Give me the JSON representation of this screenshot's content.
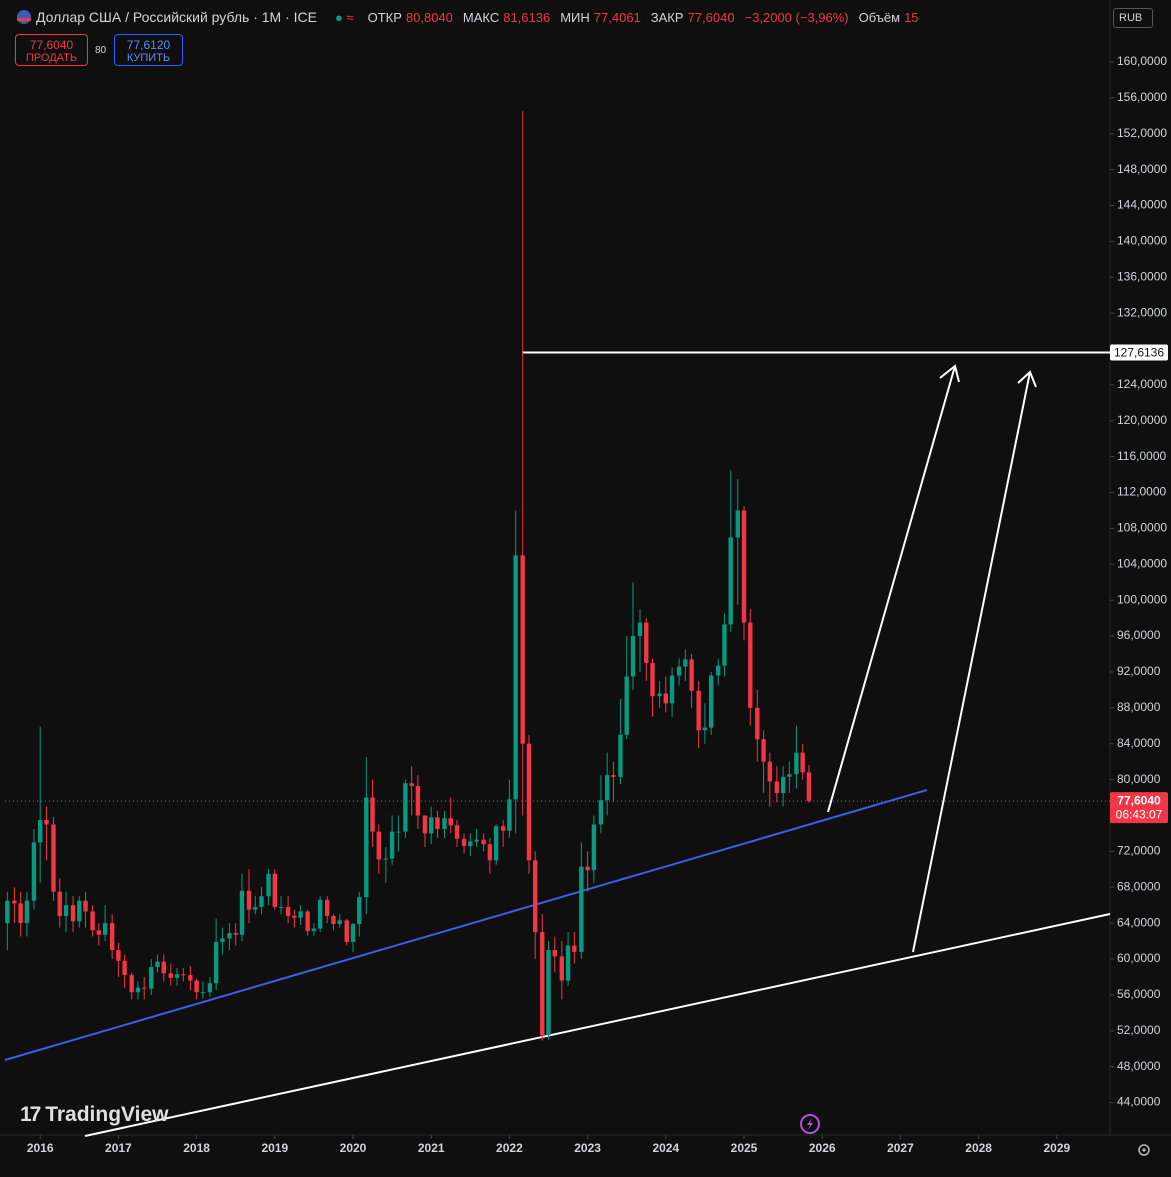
{
  "header": {
    "title": "Доллар США / Российский рубль · 1M · ICE",
    "open_label": "ОТКР",
    "open": "80,8040",
    "high_label": "МАКС",
    "high": "81,6136",
    "low_label": "МИН",
    "low": "77,4061",
    "close_label": "ЗАКР",
    "close": "77,6040",
    "change": "−3,2000 (−3,96%)",
    "volume_label": "Объём",
    "volume": "15",
    "sell_price": "77,6040",
    "sell_label": "ПРОДАТЬ",
    "spread": "80",
    "buy_price": "77,6120",
    "buy_label": "КУПИТЬ",
    "currency": "RUB",
    "brand": "TradingView"
  },
  "chart_data": {
    "type": "candlestick",
    "up_color": "#089981",
    "down_color": "#f23645",
    "x": [
      2015.58,
      2015.67,
      2015.75,
      2015.83,
      2015.92,
      2016.0,
      2016.08,
      2016.17,
      2016.25,
      2016.33,
      2016.42,
      2016.5,
      2016.58,
      2016.67,
      2016.75,
      2016.83,
      2016.92,
      2017.0,
      2017.08,
      2017.17,
      2017.25,
      2017.33,
      2017.42,
      2017.5,
      2017.58,
      2017.67,
      2017.75,
      2017.83,
      2017.92,
      2018.0,
      2018.08,
      2018.17,
      2018.25,
      2018.33,
      2018.42,
      2018.5,
      2018.58,
      2018.67,
      2018.75,
      2018.83,
      2018.92,
      2019.0,
      2019.08,
      2019.17,
      2019.25,
      2019.33,
      2019.42,
      2019.5,
      2019.58,
      2019.67,
      2019.75,
      2019.83,
      2019.92,
      2020.0,
      2020.08,
      2020.17,
      2020.25,
      2020.33,
      2020.42,
      2020.5,
      2020.58,
      2020.67,
      2020.75,
      2020.83,
      2020.92,
      2021.0,
      2021.08,
      2021.17,
      2021.25,
      2021.33,
      2021.42,
      2021.5,
      2021.58,
      2021.67,
      2021.75,
      2021.83,
      2021.92,
      2022.0,
      2022.08,
      2022.17,
      2022.25,
      2022.33,
      2022.42,
      2022.5,
      2022.58,
      2022.67,
      2022.75,
      2022.83,
      2022.92,
      2023.0,
      2023.08,
      2023.17,
      2023.25,
      2023.33,
      2023.42,
      2023.5,
      2023.58,
      2023.67,
      2023.75,
      2023.83,
      2023.92,
      2024.0,
      2024.08,
      2024.17,
      2024.25,
      2024.33,
      2024.42,
      2024.5,
      2024.58,
      2024.67,
      2024.75,
      2024.83,
      2024.92,
      2025.0,
      2025.08,
      2025.17,
      2025.25,
      2025.33,
      2025.42,
      2025.5,
      2025.58,
      2025.67,
      2025.75,
      2025.83
    ],
    "open": [
      64.0,
      66.5,
      66.2,
      64.0,
      66.5,
      73.0,
      75.5,
      75.0,
      67.5,
      64.8,
      66.0,
      64.2,
      66.5,
      65.3,
      63.2,
      62.7,
      64.0,
      61.0,
      59.8,
      58.2,
      56.3,
      56.8,
      56.7,
      59.1,
      59.7,
      58.4,
      57.9,
      58.3,
      58.2,
      57.6,
      56.3,
      56.3,
      57.3,
      61.9,
      62.3,
      62.9,
      62.7,
      67.6,
      65.5,
      65.8,
      67.0,
      69.5,
      65.8,
      65.8,
      64.8,
      64.6,
      65.3,
      63.1,
      63.4,
      66.6,
      64.8,
      63.9,
      64.3,
      61.9,
      63.9,
      66.9,
      78.0,
      74.2,
      71.1,
      71.2,
      74.2,
      74.2,
      79.6,
      79.3,
      76.0,
      74.0,
      75.8,
      74.5,
      75.7,
      74.9,
      73.4,
      72.6,
      73.1,
      73.3,
      72.8,
      71.0,
      74.8,
      74.3,
      77.8,
      105.0,
      84.0,
      71.0,
      63.0,
      51.5,
      61.0,
      60.3,
      57.6,
      61.5,
      60.8,
      70.3,
      69.9,
      75.0,
      77.7,
      80.5,
      80.3,
      85.0,
      91.5,
      96.0,
      97.5,
      93.0,
      89.3,
      89.6,
      88.5,
      91.6,
      92.6,
      93.4,
      89.9,
      85.5,
      85.8,
      91.6,
      92.7,
      97.3,
      107.0,
      110.0,
      97.5,
      88.0,
      84.5,
      82.0,
      79.8,
      78.5,
      80.3,
      80.6,
      83.0,
      80.804
    ],
    "high": [
      67.5,
      68.0,
      67.5,
      67.5,
      74.5,
      85.9,
      77.0,
      75.8,
      69.0,
      67.5,
      67.0,
      67.0,
      67.5,
      66.0,
      64.0,
      66.0,
      65.0,
      61.8,
      60.5,
      58.5,
      57.5,
      58.0,
      60.0,
      60.5,
      60.5,
      59.5,
      59.0,
      59.0,
      59.2,
      57.8,
      57.5,
      58.0,
      64.5,
      63.5,
      64.0,
      64.0,
      69.5,
      70.0,
      67.0,
      68.0,
      70.0,
      70.0,
      67.0,
      67.0,
      65.5,
      66.0,
      65.5,
      64.0,
      67.0,
      67.0,
      65.0,
      65.0,
      64.5,
      64.0,
      67.5,
      82.5,
      80.0,
      75.0,
      72.5,
      76.0,
      76.0,
      80.0,
      81.5,
      80.5,
      76.0,
      77.0,
      76.5,
      76.5,
      78.0,
      75.5,
      74.0,
      74.0,
      74.5,
      74.0,
      73.5,
      75.0,
      75.5,
      80.0,
      110.0,
      154.5,
      85.0,
      72.0,
      65.0,
      62.0,
      62.5,
      62.0,
      63.0,
      63.0,
      73.0,
      72.0,
      76.0,
      80.5,
      83.0,
      82.0,
      89.0,
      96.0,
      102.0,
      99.0,
      98.0,
      93.5,
      91.0,
      91.5,
      92.5,
      93.5,
      94.5,
      94.0,
      91.0,
      88.5,
      92.0,
      93.5,
      98.5,
      114.5,
      113.5,
      110.5,
      99.0,
      90.0,
      85.5,
      83.0,
      81.5,
      81.5,
      82.0,
      86.0,
      84.0,
      81.6136
    ],
    "low": [
      61.0,
      64.0,
      62.5,
      62.5,
      65.5,
      68.5,
      71.0,
      66.5,
      63.5,
      63.0,
      63.0,
      63.5,
      63.5,
      62.5,
      61.5,
      62.0,
      60.0,
      58.0,
      56.8,
      55.5,
      55.5,
      55.5,
      56.0,
      58.5,
      57.5,
      57.0,
      57.0,
      57.5,
      56.5,
      55.5,
      55.6,
      55.8,
      56.5,
      60.5,
      61.0,
      61.5,
      62.0,
      64.0,
      65.0,
      65.0,
      66.0,
      65.5,
      65.0,
      64.0,
      63.5,
      63.8,
      62.6,
      62.6,
      63.0,
      64.0,
      63.2,
      63.5,
      61.5,
      60.8,
      62.5,
      65.0,
      72.5,
      69.5,
      68.5,
      70.5,
      72.0,
      73.5,
      76.0,
      74.5,
      72.5,
      72.8,
      73.5,
      73.5,
      74.0,
      72.5,
      71.8,
      71.5,
      72.5,
      72.0,
      69.5,
      70.5,
      72.5,
      73.5,
      74.0,
      76.0,
      69.5,
      60.0,
      50.9,
      51.0,
      58.5,
      55.5,
      57.0,
      59.5,
      60.0,
      67.5,
      68.5,
      74.0,
      76.0,
      77.5,
      79.5,
      84.5,
      90.0,
      92.0,
      91.0,
      87.0,
      88.0,
      87.5,
      87.0,
      90.5,
      91.0,
      88.0,
      83.5,
      84.0,
      85.0,
      90.5,
      91.5,
      96.5,
      99.5,
      95.5,
      86.0,
      82.0,
      78.5,
      77.0,
      77.5,
      77.0,
      78.5,
      79.0,
      80.0,
      77.4061
    ],
    "close": [
      66.5,
      66.2,
      64.0,
      66.5,
      73.0,
      75.5,
      75.0,
      67.5,
      64.8,
      66.0,
      64.2,
      66.5,
      65.3,
      63.2,
      62.7,
      64.0,
      61.0,
      59.8,
      58.2,
      56.3,
      56.8,
      56.7,
      59.1,
      59.7,
      58.4,
      57.9,
      58.3,
      58.2,
      57.6,
      56.3,
      56.3,
      57.3,
      61.9,
      62.3,
      62.9,
      62.7,
      67.6,
      65.5,
      65.8,
      67.0,
      69.5,
      65.8,
      65.8,
      64.8,
      64.6,
      65.3,
      63.1,
      63.4,
      66.6,
      64.8,
      63.9,
      64.3,
      61.9,
      63.9,
      66.9,
      78.0,
      74.2,
      71.1,
      71.2,
      74.2,
      74.2,
      79.6,
      79.3,
      76.0,
      74.0,
      75.8,
      74.5,
      75.7,
      74.9,
      73.4,
      72.6,
      73.1,
      73.3,
      72.8,
      71.0,
      74.8,
      74.3,
      77.8,
      105.0,
      84.0,
      71.0,
      63.0,
      51.5,
      61.0,
      60.3,
      57.6,
      61.5,
      60.8,
      70.3,
      69.9,
      75.0,
      77.7,
      80.5,
      80.3,
      85.0,
      91.5,
      96.0,
      97.5,
      93.0,
      89.3,
      89.6,
      88.5,
      91.6,
      92.6,
      93.4,
      89.9,
      85.5,
      85.8,
      91.6,
      92.7,
      97.3,
      107.0,
      110.0,
      97.5,
      88.0,
      84.5,
      82.0,
      79.8,
      78.5,
      80.3,
      80.6,
      83.0,
      80.804,
      77.604
    ],
    "xlim": [
      2015.55,
      2029.68
    ],
    "xticks": [
      2016,
      2017,
      2018,
      2019,
      2020,
      2021,
      2022,
      2023,
      2024,
      2025,
      2026,
      2027,
      2028,
      2029
    ],
    "ylim": [
      40.38,
      166.35
    ],
    "yticks": [
      {
        "value": 160,
        "label": "160,0000"
      },
      {
        "value": 156,
        "label": "156,0000"
      },
      {
        "value": 152,
        "label": "152,0000"
      },
      {
        "value": 148,
        "label": "148,0000"
      },
      {
        "value": 144,
        "label": "144,0000"
      },
      {
        "value": 140,
        "label": "140,0000"
      },
      {
        "value": 136,
        "label": "136,0000"
      },
      {
        "value": 132,
        "label": "132,0000"
      },
      {
        "value": 124,
        "label": "124,0000"
      },
      {
        "value": 120,
        "label": "120,0000"
      },
      {
        "value": 116,
        "label": "116,0000"
      },
      {
        "value": 112,
        "label": "112,0000"
      },
      {
        "value": 108,
        "label": "108,0000"
      },
      {
        "value": 104,
        "label": "104,0000"
      },
      {
        "value": 100,
        "label": "100,0000"
      },
      {
        "value": 96,
        "label": "96,0000"
      },
      {
        "value": 92,
        "label": "92,0000"
      },
      {
        "value": 88,
        "label": "88,0000"
      },
      {
        "value": 84,
        "label": "84,0000"
      },
      {
        "value": 80,
        "label": "80,0000"
      },
      {
        "value": 72,
        "label": "72,0000"
      },
      {
        "value": 68,
        "label": "68,0000"
      },
      {
        "value": 64,
        "label": "64,0000"
      },
      {
        "value": 60,
        "label": "60,0000"
      },
      {
        "value": 56,
        "label": "56,0000"
      },
      {
        "value": 52,
        "label": "52,0000"
      },
      {
        "value": 48,
        "label": "48,0000"
      },
      {
        "value": 44,
        "label": "44,0000"
      }
    ],
    "hline": {
      "value": 127.6136,
      "label": "127,6136"
    },
    "last_price": {
      "value": 77.604,
      "label": "77,6040"
    },
    "countdown": "06:43:07",
    "grid": false
  }
}
